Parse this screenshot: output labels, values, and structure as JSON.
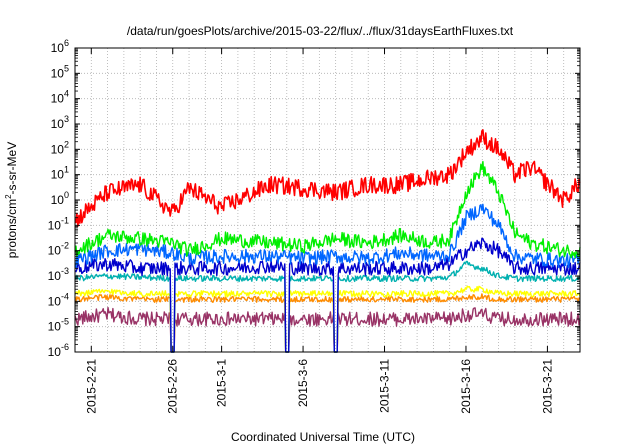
{
  "chart_data": {
    "type": "line",
    "title": "/data/run/goesPlots/archive/2015-03-22/flux/../flux/31daysEarthFluxes.txt",
    "xlabel": "Coordinated Universal Time (UTC)",
    "ylabel": "protons/cm2-s-sr-MeV",
    "ylabel_parts": {
      "pre": "protons/cm",
      "sup": "2",
      "post": "-s-sr-MeV"
    },
    "yscale": "log",
    "ylim": [
      1e-06,
      1000000.0
    ],
    "xlim": [
      "2015-02-20",
      "2015-03-23"
    ],
    "x_tick_labels": [
      "2015-2-21",
      "2015-2-26",
      "2015-3-1",
      "2015-3-6",
      "2015-3-11",
      "2015-3-16",
      "2015-3-21"
    ],
    "x_tick_days": [
      "2015-02-21",
      "2015-02-26",
      "2015-03-01",
      "2015-03-06",
      "2015-03-11",
      "2015-03-16",
      "2015-03-21"
    ],
    "y_ticks": [
      {
        "base": "10",
        "exp": "-6"
      },
      {
        "base": "10",
        "exp": "-5"
      },
      {
        "base": "10",
        "exp": "-4"
      },
      {
        "base": "10",
        "exp": "-3"
      },
      {
        "base": "10",
        "exp": "-2"
      },
      {
        "base": "10",
        "exp": "-1"
      },
      {
        "base": "10",
        "exp": "0"
      },
      {
        "base": "10",
        "exp": "1"
      },
      {
        "base": "10",
        "exp": "2"
      },
      {
        "base": "10",
        "exp": "3"
      },
      {
        "base": "10",
        "exp": "4"
      },
      {
        "base": "10",
        "exp": "5"
      },
      {
        "base": "10",
        "exp": "6"
      }
    ],
    "grid": true,
    "legend": "none",
    "series": [
      {
        "color": "#ff0000",
        "x": [
          "2015-02-20",
          "2015-02-22",
          "2015-02-24",
          "2015-02-26",
          "2015-02-27",
          "2015-03-01",
          "2015-03-04",
          "2015-03-06",
          "2015-03-08",
          "2015-03-10",
          "2015-03-12",
          "2015-03-14",
          "2015-03-15",
          "2015-03-16",
          "2015-03-17",
          "2015-03-18",
          "2015-03-19",
          "2015-03-20",
          "2015-03-22",
          "2015-03-23"
        ],
        "y": [
          0.15,
          2,
          4,
          0.3,
          3,
          0.5,
          4,
          3,
          2,
          4,
          4,
          8,
          10,
          80,
          300,
          100,
          10,
          20,
          1,
          5
        ]
      },
      {
        "color": "#00ee00",
        "x": [
          "2015-02-20",
          "2015-02-22",
          "2015-02-24",
          "2015-02-26",
          "2015-02-27",
          "2015-03-01",
          "2015-03-04",
          "2015-03-06",
          "2015-03-08",
          "2015-03-10",
          "2015-03-12",
          "2015-03-14",
          "2015-03-15",
          "2015-03-16",
          "2015-03-17",
          "2015-03-18",
          "2015-03-19",
          "2015-03-20",
          "2015-03-22",
          "2015-03-23"
        ],
        "y": [
          0.01,
          0.04,
          0.03,
          0.02,
          0.01,
          0.03,
          0.02,
          0.015,
          0.03,
          0.02,
          0.04,
          0.02,
          0.03,
          2,
          20,
          2,
          0.05,
          0.02,
          0.01,
          0.01
        ]
      },
      {
        "color": "#0066ff",
        "x": [
          "2015-02-20",
          "2015-02-22",
          "2015-02-24",
          "2015-02-26",
          "2015-02-27",
          "2015-03-01",
          "2015-03-04",
          "2015-03-06",
          "2015-03-08",
          "2015-03-10",
          "2015-03-12",
          "2015-03-14",
          "2015-03-15",
          "2015-03-16",
          "2015-03-17",
          "2015-03-18",
          "2015-03-19",
          "2015-03-20",
          "2015-03-22",
          "2015-03-23"
        ],
        "y": [
          0.004,
          0.01,
          0.012,
          0.008,
          0.005,
          0.006,
          0.006,
          0.005,
          0.006,
          0.005,
          0.008,
          0.006,
          0.007,
          0.2,
          0.5,
          0.1,
          0.006,
          0.005,
          0.004,
          0.004
        ]
      },
      {
        "color": "#0000cc",
        "x": [
          "2015-02-20",
          "2015-02-22",
          "2015-02-24",
          "2015-02-26",
          "2015-02-27",
          "2015-03-01",
          "2015-03-04",
          "2015-03-06",
          "2015-03-08",
          "2015-03-10",
          "2015-03-12",
          "2015-03-14",
          "2015-03-15",
          "2015-03-16",
          "2015-03-17",
          "2015-03-18",
          "2015-03-19",
          "2015-03-20",
          "2015-03-22",
          "2015-03-23"
        ],
        "y": [
          0.002,
          0.003,
          0.002,
          0.002,
          0.002,
          0.002,
          0.0025,
          0.002,
          0.002,
          0.002,
          0.002,
          0.002,
          0.003,
          0.01,
          0.02,
          0.01,
          0.002,
          0.002,
          0.002,
          0.002
        ]
      },
      {
        "color": "#00b0b0",
        "x": [
          "2015-02-20",
          "2015-02-22",
          "2015-02-24",
          "2015-02-26",
          "2015-02-27",
          "2015-03-01",
          "2015-03-04",
          "2015-03-06",
          "2015-03-08",
          "2015-03-10",
          "2015-03-12",
          "2015-03-14",
          "2015-03-15",
          "2015-03-16",
          "2015-03-17",
          "2015-03-18",
          "2015-03-19",
          "2015-03-20",
          "2015-03-22",
          "2015-03-23"
        ],
        "y": [
          0.0008,
          0.001,
          0.0009,
          0.0008,
          0.0008,
          0.0008,
          0.0008,
          0.0008,
          0.0008,
          0.0008,
          0.0008,
          0.0008,
          0.0009,
          0.003,
          0.002,
          0.001,
          0.0008,
          0.0008,
          0.0008,
          0.0008
        ]
      },
      {
        "color": "#ffff00",
        "x": [
          "2015-02-20",
          "2015-02-22",
          "2015-02-24",
          "2015-02-26",
          "2015-02-27",
          "2015-03-01",
          "2015-03-04",
          "2015-03-06",
          "2015-03-08",
          "2015-03-10",
          "2015-03-12",
          "2015-03-14",
          "2015-03-15",
          "2015-03-16",
          "2015-03-17",
          "2015-03-18",
          "2015-03-19",
          "2015-03-20",
          "2015-03-22",
          "2015-03-23"
        ],
        "y": [
          0.0002,
          0.00025,
          0.0002,
          0.0002,
          0.0002,
          0.0002,
          0.0002,
          0.0002,
          0.0002,
          0.0002,
          0.0002,
          0.0002,
          0.0002,
          0.0003,
          0.0003,
          0.0002,
          0.0002,
          0.0002,
          0.0002,
          0.0002
        ]
      },
      {
        "color": "#ff8c00",
        "x": [
          "2015-02-20",
          "2015-02-22",
          "2015-02-24",
          "2015-02-26",
          "2015-02-27",
          "2015-03-01",
          "2015-03-04",
          "2015-03-06",
          "2015-03-08",
          "2015-03-10",
          "2015-03-12",
          "2015-03-14",
          "2015-03-15",
          "2015-03-16",
          "2015-03-17",
          "2015-03-18",
          "2015-03-19",
          "2015-03-20",
          "2015-03-22",
          "2015-03-23"
        ],
        "y": [
          0.00012,
          0.00015,
          0.00012,
          0.00012,
          0.00012,
          0.00012,
          0.00012,
          0.00012,
          0.00012,
          0.00012,
          0.00012,
          0.00012,
          0.00012,
          0.00015,
          0.00015,
          0.00012,
          0.00012,
          0.00012,
          0.00012,
          0.00012
        ]
      },
      {
        "color": "#993366",
        "x": [
          "2015-02-20",
          "2015-02-22",
          "2015-02-24",
          "2015-02-26",
          "2015-02-27",
          "2015-03-01",
          "2015-03-04",
          "2015-03-06",
          "2015-03-08",
          "2015-03-10",
          "2015-03-12",
          "2015-03-14",
          "2015-03-15",
          "2015-03-16",
          "2015-03-17",
          "2015-03-18",
          "2015-03-19",
          "2015-03-20",
          "2015-03-22",
          "2015-03-23"
        ],
        "y": [
          2e-05,
          3e-05,
          2e-05,
          2e-05,
          2e-05,
          2e-05,
          2e-05,
          2e-05,
          2e-05,
          2e-05,
          2e-05,
          2e-05,
          2e-05,
          3e-05,
          3e-05,
          2e-05,
          2e-05,
          2e-05,
          2e-05,
          2e-05
        ]
      }
    ],
    "dropouts": [
      "2015-02-26",
      "2015-03-05",
      "2015-03-08"
    ]
  }
}
